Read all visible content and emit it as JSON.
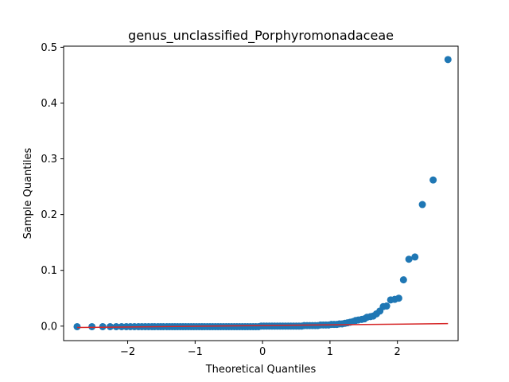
{
  "chart_data": {
    "type": "scatter",
    "title": "genus_unclassified_Porphyromonadaceae",
    "xlabel": "Theoretical Quantiles",
    "ylabel": "Sample Quantiles",
    "xlim": [
      -2.95,
      2.9
    ],
    "ylim": [
      -0.026,
      0.502
    ],
    "xticks": [
      -2,
      -1,
      0,
      1,
      2
    ],
    "xtick_labels": [
      "−2",
      "−1",
      "0",
      "1",
      "2"
    ],
    "yticks": [
      0.0,
      0.1,
      0.2,
      0.3,
      0.4,
      0.5
    ],
    "ytick_labels": [
      "0.0",
      "0.1",
      "0.2",
      "0.3",
      "0.4",
      "0.5"
    ],
    "grid": false,
    "legend": "none",
    "marker_color": "#1f77b4",
    "line_color": "#d62728",
    "series": [
      {
        "kind": "points",
        "x": [
          -2.75,
          -2.53,
          -2.37,
          -2.26,
          -2.17,
          -2.09,
          -2.02,
          -1.96,
          -1.9,
          -1.84,
          -1.79,
          -1.74,
          -1.69,
          -1.64,
          -1.6,
          -1.55,
          -1.51,
          -1.47,
          -1.42,
          -1.38,
          -1.34,
          -1.3,
          -1.26,
          -1.22,
          -1.18,
          -1.14,
          -1.1,
          -1.06,
          -1.02,
          -0.98,
          -0.94,
          -0.9,
          -0.86,
          -0.82,
          -0.78,
          -0.74,
          -0.7,
          -0.66,
          -0.62,
          -0.58,
          -0.54,
          -0.5,
          -0.46,
          -0.42,
          -0.38,
          -0.34,
          -0.3,
          -0.26,
          -0.22,
          -0.18,
          -0.14,
          -0.1,
          -0.06,
          -0.02,
          0.02,
          0.06,
          0.1,
          0.14,
          0.18,
          0.22,
          0.26,
          0.3,
          0.34,
          0.38,
          0.42,
          0.46,
          0.5,
          0.54,
          0.58,
          0.62,
          0.66,
          0.7,
          0.74,
          0.78,
          0.82,
          0.86,
          0.9,
          0.94,
          0.98,
          1.02,
          1.06,
          1.1,
          1.14,
          1.18,
          1.22,
          1.26,
          1.3,
          1.34,
          1.38,
          1.42,
          1.47,
          1.51,
          1.55,
          1.6,
          1.64,
          1.69,
          1.74,
          1.79,
          1.84,
          1.9,
          1.96,
          2.02,
          2.09,
          2.17,
          2.26,
          2.37,
          2.53,
          2.75
        ],
        "y": [
          -0.001,
          -0.001,
          -0.001,
          -0.001,
          -0.001,
          -0.001,
          -0.001,
          -0.001,
          -0.001,
          -0.001,
          -0.001,
          -0.001,
          -0.001,
          -0.001,
          -0.001,
          -0.001,
          -0.001,
          -0.001,
          -0.001,
          -0.001,
          -0.001,
          -0.001,
          -0.001,
          -0.001,
          -0.001,
          -0.001,
          -0.001,
          -0.001,
          -0.001,
          -0.001,
          -0.001,
          -0.001,
          -0.001,
          -0.001,
          -0.001,
          -0.001,
          -0.001,
          -0.001,
          -0.001,
          -0.001,
          -0.001,
          -0.001,
          -0.001,
          -0.001,
          -0.001,
          -0.001,
          -0.001,
          -0.001,
          -0.001,
          -0.001,
          -0.001,
          -0.001,
          -0.001,
          0.0,
          0.0,
          0.0,
          0.0,
          0.0,
          0.0,
          0.0,
          0.0,
          0.0,
          0.0,
          0.0,
          0.0,
          0.0,
          0.0,
          0.0,
          0.0,
          0.001,
          0.001,
          0.001,
          0.001,
          0.001,
          0.001,
          0.002,
          0.002,
          0.002,
          0.002,
          0.003,
          0.003,
          0.003,
          0.004,
          0.004,
          0.005,
          0.006,
          0.007,
          0.008,
          0.01,
          0.011,
          0.012,
          0.013,
          0.016,
          0.017,
          0.018,
          0.022,
          0.027,
          0.035,
          0.036,
          0.047,
          0.048,
          0.05,
          0.083,
          0.12,
          0.124,
          0.218,
          0.262,
          0.478
        ]
      },
      {
        "kind": "reference-line",
        "x": [
          -2.75,
          2.75
        ],
        "y": [
          -0.0025,
          0.0045
        ]
      }
    ]
  }
}
